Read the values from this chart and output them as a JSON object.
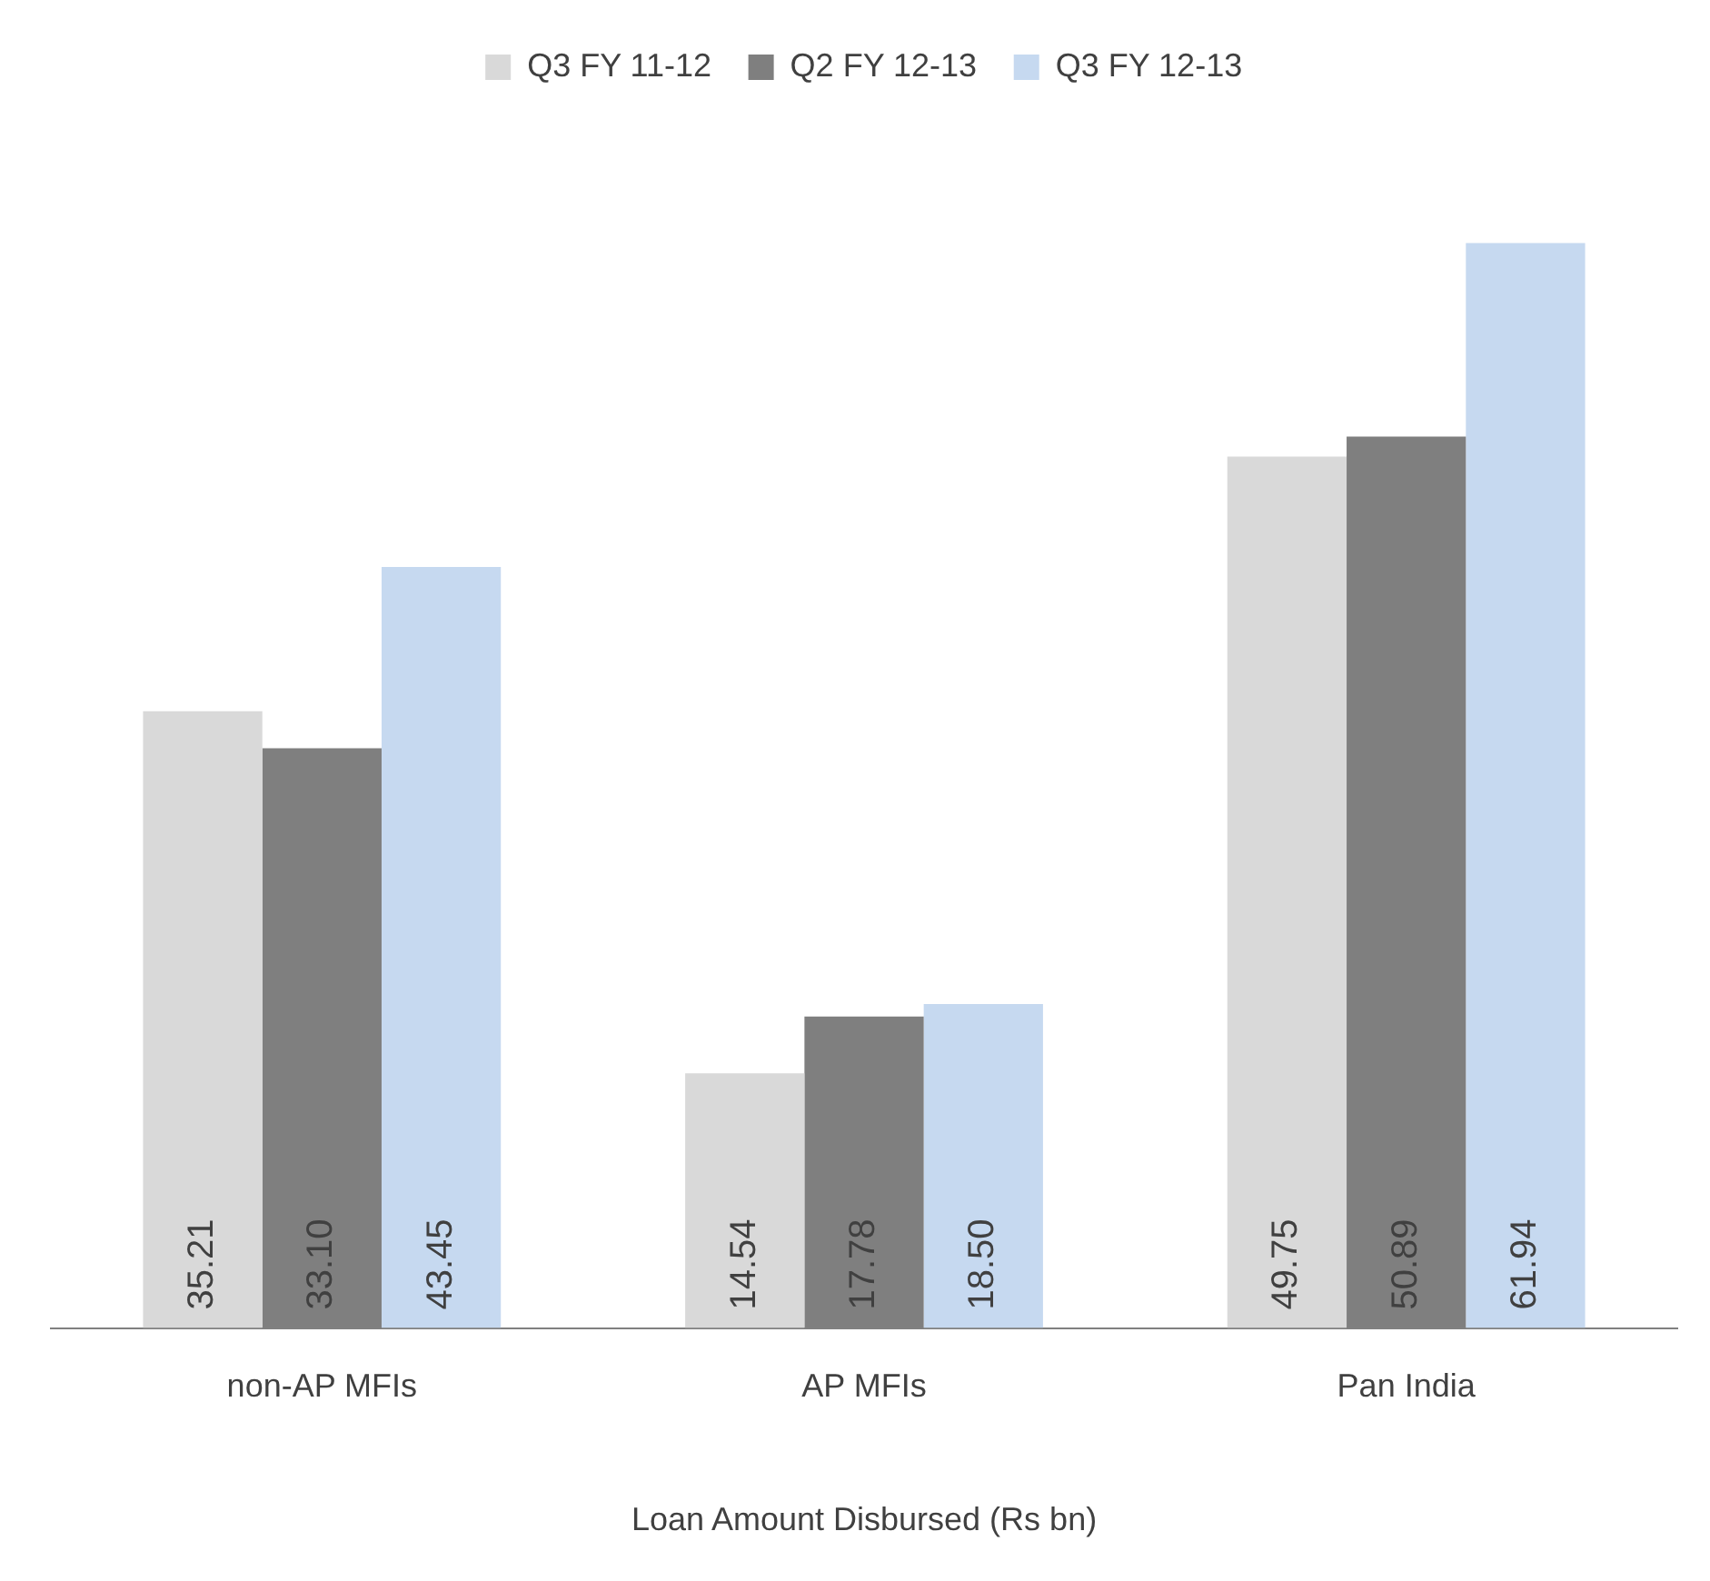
{
  "chart_data": {
    "type": "bar",
    "xlabel": "Loan Amount Disbursed (Rs bn)",
    "categories": [
      "non-AP MFIs",
      "AP MFIs",
      "Pan India"
    ],
    "series": [
      {
        "name": "Q3 FY 11-12",
        "color": "#d9d9d9",
        "values": [
          35.21,
          14.54,
          49.75
        ],
        "value_labels": [
          "35.21",
          "14.54",
          "49.75"
        ]
      },
      {
        "name": "Q2 FY 12-13",
        "color": "#7f7f7f",
        "values": [
          33.1,
          17.78,
          50.89
        ],
        "value_labels": [
          "33.10",
          "17.78",
          "50.89"
        ]
      },
      {
        "name": "Q3 FY 12-13",
        "color": "#c6d9f0",
        "values": [
          43.45,
          18.5,
          61.94
        ],
        "value_labels": [
          "43.45",
          "18.50",
          "61.94"
        ]
      }
    ],
    "legend": "top",
    "grid": false,
    "tick_labels": "x"
  }
}
